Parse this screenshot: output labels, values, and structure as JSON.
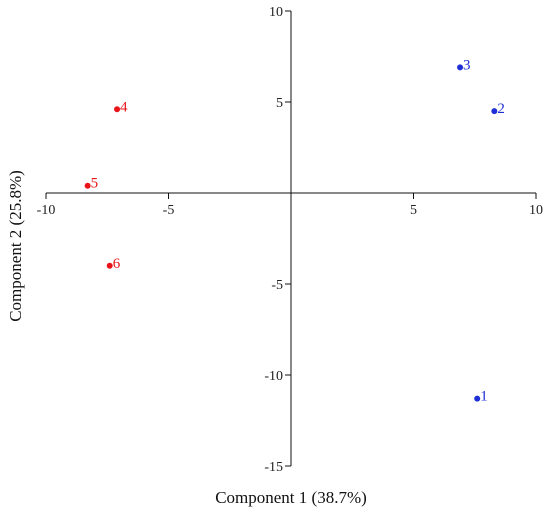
{
  "chart_data": {
    "type": "scatter",
    "xlabel": "Component 1 (38.7%)",
    "ylabel": "Component 2 (25.8%)",
    "xlim": [
      -10,
      10
    ],
    "ylim": [
      -15,
      10
    ],
    "x_ticks": [
      -10,
      -5,
      5,
      10
    ],
    "x_tick_labels": [
      "-10",
      "-5",
      "5",
      "10"
    ],
    "y_ticks": [
      10,
      5,
      -5,
      -10,
      -15
    ],
    "y_tick_labels": [
      "10",
      "5",
      "-5",
      "-10",
      "-15"
    ],
    "grid": false,
    "legend": "none",
    "colors": {
      "blue": "#1f2fd6",
      "red": "#e8141a"
    },
    "points": [
      {
        "label": "1",
        "x": 7.6,
        "y": -11.3,
        "color": "blue"
      },
      {
        "label": "2",
        "x": 8.3,
        "y": 4.5,
        "color": "blue"
      },
      {
        "label": "3",
        "x": 6.9,
        "y": 6.9,
        "color": "blue"
      },
      {
        "label": "4",
        "x": -7.1,
        "y": 4.6,
        "color": "red"
      },
      {
        "label": "5",
        "x": -8.3,
        "y": 0.4,
        "color": "red"
      },
      {
        "label": "6",
        "x": -7.4,
        "y": -4.0,
        "color": "red"
      }
    ]
  }
}
